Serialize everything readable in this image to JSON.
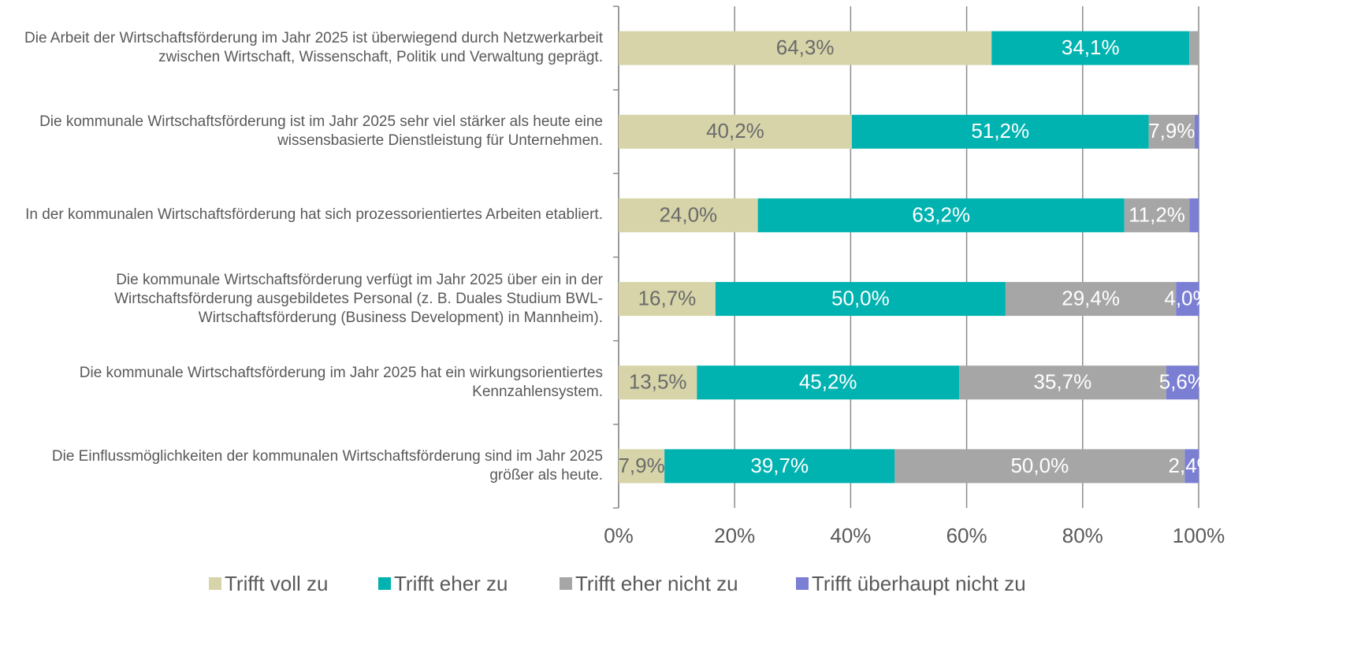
{
  "chart_data": {
    "type": "stacked-bar-horizontal",
    "categories": [
      "Die Arbeit der Wirtschaftsförderung im Jahr 2025 ist überwiegend durch Netzwerkarbeit zwischen Wirtschaft, Wissenschaft, Politik und Verwaltung geprägt.",
      "Die kommunale Wirtschaftsförderung ist im Jahr 2025 sehr viel stärker als heute eine wissensbasierte Dienstleistung für Unternehmen.",
      "In der kommunalen Wirtschaftsförderung hat sich prozessorientiertes Arbeiten etabliert.",
      "Die kommunale Wirtschaftsförderung verfügt im Jahr 2025 über ein in der Wirtschaftsförderung ausgebildetes Personal (z. B. Duales Studium BWL-Wirtschaftsförderung (Business Development) in Mannheim).",
      "Die kommunale Wirtschaftsförderung im Jahr 2025 hat ein wirkungsorientiertes Kennzahlensystem.",
      "Die Einflussmöglichkeiten der kommunalen Wirtschaftsförderung sind im Jahr 2025 größer als heute."
    ],
    "series": [
      {
        "name": "Trifft voll zu",
        "color": "#d6d4a8",
        "label_color": "#6b6b6b",
        "values": [
          64.3,
          40.2,
          24.0,
          16.7,
          13.5,
          7.9
        ],
        "value_labels": [
          "64,3%",
          "40,2%",
          "24,0%",
          "16,7%",
          "13,5%",
          "7,9%"
        ]
      },
      {
        "name": "Trifft eher zu",
        "color": "#00b3b0",
        "label_color": "#ffffff",
        "values": [
          34.1,
          51.2,
          63.2,
          50.0,
          45.2,
          39.7
        ],
        "value_labels": [
          "34,1%",
          "51,2%",
          "63,2%",
          "50,0%",
          "45,2%",
          "39,7%"
        ]
      },
      {
        "name": "Trifft eher nicht zu",
        "color": "#a6a6a6",
        "label_color": "#ffffff",
        "values": [
          1.6,
          7.9,
          11.2,
          29.4,
          35.7,
          50.0
        ],
        "value_labels": [
          null,
          "7,9%",
          "11,2%",
          "29,4%",
          "35,7%",
          "50,0%"
        ]
      },
      {
        "name": "Trifft überhaupt nicht zu",
        "color": "#7b7fd4",
        "label_color": "#ffffff",
        "values": [
          0,
          0.7,
          1.6,
          4.0,
          5.6,
          2.4
        ],
        "value_labels": [
          null,
          null,
          null,
          "4,0%",
          "5,6%",
          "2,4%"
        ]
      }
    ],
    "xlim": [
      0,
      100
    ],
    "xticks": [
      {
        "value": 0,
        "label": "0%"
      },
      {
        "value": 20,
        "label": "20%"
      },
      {
        "value": 40,
        "label": "40%"
      },
      {
        "value": 60,
        "label": "60%"
      },
      {
        "value": 80,
        "label": "80%"
      },
      {
        "value": 100,
        "label": "100%"
      }
    ],
    "grid": true,
    "legend": "bottom"
  }
}
